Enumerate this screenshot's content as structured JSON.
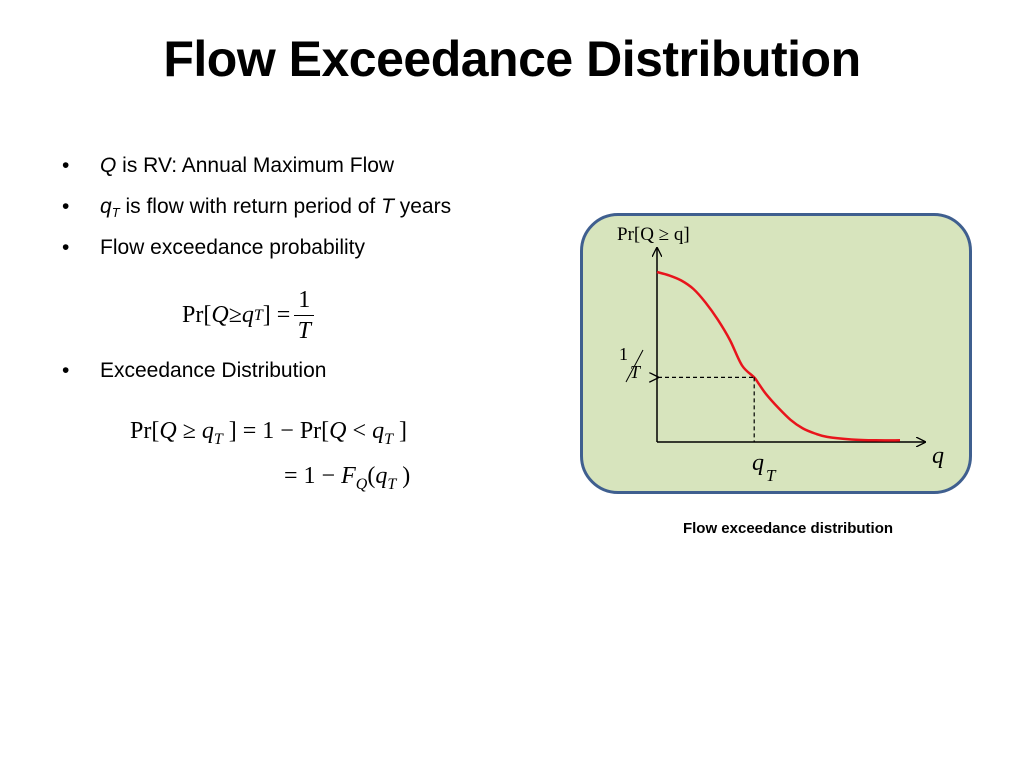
{
  "title": "Flow Exceedance Distribution",
  "bullets": [
    {
      "var": "Q",
      "text": " is RV: Annual Maximum Flow"
    },
    {
      "var": "q",
      "sub": "T",
      "text": " is flow with return period of ",
      "var2": "T",
      "text2": " years"
    },
    {
      "text": "Flow exceedance probability"
    },
    {
      "text": "Exceedance Distribution"
    }
  ],
  "equations": {
    "eq1_lhs": "Pr[",
    "eq1_Q": "Q",
    "eq1_ge": " ≥ ",
    "eq1_q": "q",
    "eq1_T": "T",
    "eq1_close": " ] =",
    "eq1_num": "1",
    "eq1_den": "T",
    "eq2_line1_a": "Pr[",
    "eq2_line1_Q": "Q",
    "eq2_line1_ge": " ≥ ",
    "eq2_line1_q": "q",
    "eq2_line1_T": "T",
    "eq2_line1_b": " ] = 1 − Pr[",
    "eq2_line1_Q2": "Q",
    "eq2_line1_lt": " < ",
    "eq2_line1_q2": "q",
    "eq2_line1_T2": "T",
    "eq2_line1_c": " ]",
    "eq2_line2_a": "= 1 − ",
    "eq2_line2_F": "F",
    "eq2_line2_Q": "Q",
    "eq2_line2_b": "(",
    "eq2_line2_q": "q",
    "eq2_line2_T": "T",
    "eq2_line2_c": " )"
  },
  "chart_data": {
    "type": "line",
    "title": "",
    "ylabel": "Pr[Q ≥ q]",
    "xlabel": "q",
    "marker_x_label": "qT",
    "marker_y_label": "1/T",
    "series": [
      {
        "name": "exceedance",
        "color": "#e8141c",
        "x": [
          0,
          0.05,
          0.1,
          0.15,
          0.2,
          0.25,
          0.3,
          0.35,
          0.4,
          0.42,
          0.45,
          0.5,
          0.55,
          0.6,
          0.65,
          0.7,
          0.8,
          0.9,
          1.0
        ],
        "y": [
          1.0,
          0.98,
          0.95,
          0.9,
          0.82,
          0.72,
          0.6,
          0.45,
          0.38,
          0.34,
          0.28,
          0.2,
          0.13,
          0.08,
          0.05,
          0.03,
          0.015,
          0.01,
          0.01
        ]
      }
    ],
    "marker": {
      "x": 0.4,
      "y": 0.38
    }
  },
  "caption": "Flow exceedance distribution",
  "colors": {
    "panel_bg": "#d7e4bd",
    "panel_border": "#3f5f8f",
    "curve": "#e8141c"
  }
}
